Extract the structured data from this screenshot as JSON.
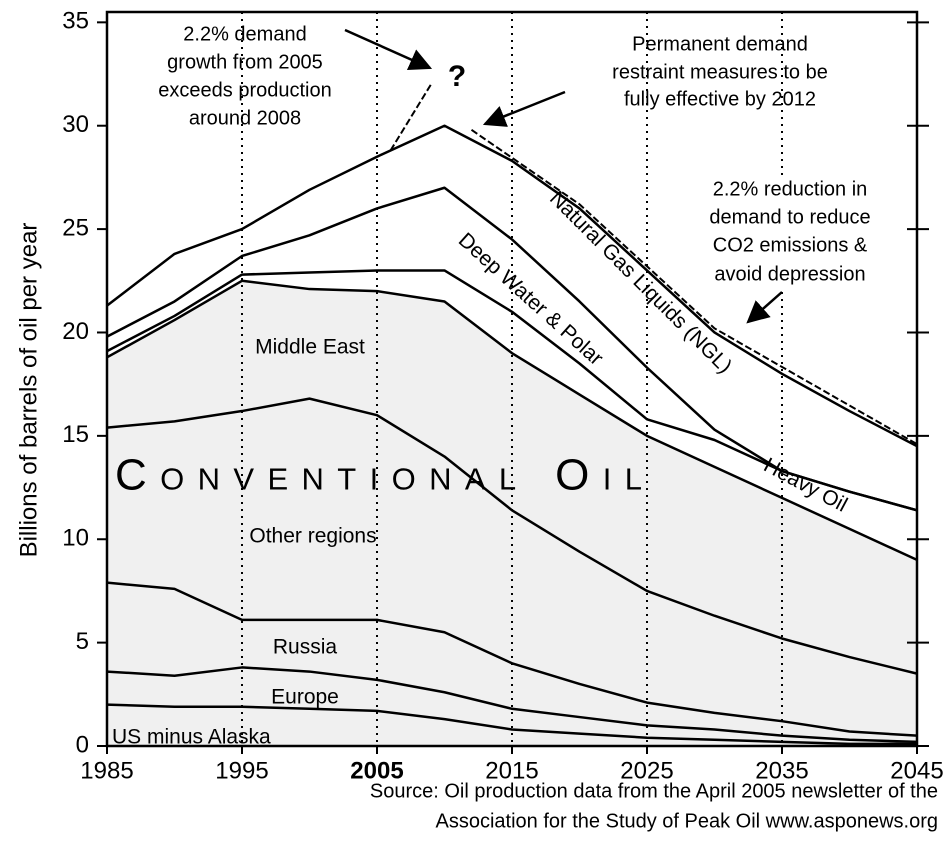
{
  "chart_data": {
    "type": "stacked_area",
    "ylabel": "Billions of barrels of oil per year",
    "x": [
      1985,
      1990,
      1995,
      2000,
      2005,
      2010,
      2015,
      2020,
      2025,
      2030,
      2035,
      2040,
      2045
    ],
    "xlim": [
      1985,
      2045
    ],
    "xticks": [
      1985,
      1995,
      2005,
      2015,
      2025,
      2035,
      2045
    ],
    "highlight_xtick": 2005,
    "xgrid": true,
    "ylim": [
      0,
      35.5
    ],
    "yticks": [
      0,
      5,
      10,
      15,
      20,
      25,
      30,
      35
    ],
    "overlay_label": "Conventional Oil",
    "series": [
      {
        "name": "US minus Alaska",
        "color": "#f0f0f0",
        "values": [
          2.0,
          1.9,
          1.9,
          1.8,
          1.7,
          1.3,
          0.8,
          0.6,
          0.4,
          0.3,
          0.2,
          0.1,
          0.1
        ]
      },
      {
        "name": "Europe",
        "color": "#f0f0f0",
        "values": [
          1.6,
          1.5,
          1.9,
          1.8,
          1.5,
          1.3,
          1.0,
          0.8,
          0.6,
          0.5,
          0.3,
          0.2,
          0.1
        ]
      },
      {
        "name": "Russia",
        "color": "#f0f0f0",
        "values": [
          4.3,
          4.2,
          2.3,
          2.5,
          2.9,
          2.9,
          2.2,
          1.6,
          1.1,
          0.8,
          0.7,
          0.4,
          0.3
        ]
      },
      {
        "name": "Other regions",
        "color": "#f0f0f0",
        "values": [
          7.5,
          8.1,
          10.1,
          10.7,
          9.9,
          8.5,
          7.4,
          6.4,
          5.4,
          4.7,
          4.0,
          3.6,
          3.0
        ]
      },
      {
        "name": "Middle East",
        "color": "#f0f0f0",
        "values": [
          3.4,
          4.9,
          6.3,
          5.3,
          6.0,
          7.5,
          7.6,
          7.6,
          7.5,
          7.2,
          6.8,
          6.2,
          5.5
        ]
      },
      {
        "name": "Heavy Oil",
        "color": "#ffffff",
        "values": [
          0.3,
          0.2,
          0.3,
          0.8,
          1.0,
          1.5,
          2.0,
          1.5,
          0.8,
          1.3,
          1.3,
          1.8,
          2.4
        ]
      },
      {
        "name": "Deep Water & Polar",
        "color": "#ffffff",
        "values": [
          0.7,
          0.7,
          0.9,
          1.8,
          3.0,
          4.0,
          3.5,
          3.0,
          2.5,
          0.5,
          0,
          0,
          0
        ]
      },
      {
        "name": "Natural Gas Liquids (NGL)",
        "color": "#ffffff",
        "values": [
          1.5,
          2.3,
          1.3,
          2.2,
          2.5,
          3.0,
          3.8,
          4.5,
          4.7,
          4.7,
          4.7,
          3.9,
          3.1
        ]
      }
    ],
    "demand_growth": {
      "x": [
        2006,
        2009
      ],
      "values": [
        28.8,
        32.0
      ]
    },
    "demand_reduction": {
      "x": [
        2012,
        2020,
        2030,
        2045
      ],
      "values": [
        29.8,
        26.2,
        20.2,
        14.6
      ]
    },
    "annotations": [
      {
        "lines": [
          "2.2% demand",
          "growth from 2005",
          "exceeds production",
          "around 2008"
        ]
      },
      {
        "lines": [
          "?"
        ]
      },
      {
        "lines": [
          "Permanent demand",
          "restraint measures to be",
          "fully effective by 2012"
        ]
      },
      {
        "lines": [
          "2.2% reduction  in",
          "demand to reduce",
          "CO2 emissions &",
          "avoid depression"
        ]
      }
    ],
    "source": [
      "Source: Oil production data from the April 2005  newsletter of the",
      "Association for the Study of Peak Oil    www.asponews.org"
    ]
  }
}
